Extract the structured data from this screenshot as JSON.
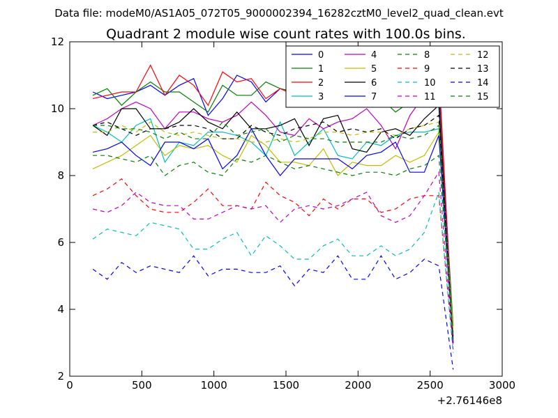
{
  "figure": {
    "suptitle": "Data file: modeM0/AS1A05_072T05_9000002394_16282cztM0_level2_quad_clean.evt"
  },
  "chart_data": {
    "type": "line",
    "title": "Quadrant 2 module wise count rates with 100.0s bins.",
    "xlabel": "",
    "ylabel": "",
    "xlim": [
      0,
      3000
    ],
    "ylim": [
      2,
      12
    ],
    "x_offset_label": "+2.76146e8",
    "xticks": [
      0,
      500,
      1000,
      1500,
      2000,
      2500,
      3000
    ],
    "xtick_labels": [
      "0",
      "500",
      "1000",
      "1500",
      "2000",
      "2500",
      "3000"
    ],
    "yticks": [
      2,
      4,
      6,
      8,
      10,
      12
    ],
    "ytick_labels": [
      "2",
      "4",
      "6",
      "8",
      "10",
      "12"
    ],
    "grid": false,
    "legend_placement": "top-right",
    "legend_columns": 4,
    "x": [
      160,
      260,
      360,
      460,
      560,
      660,
      760,
      860,
      960,
      1060,
      1160,
      1260,
      1360,
      1460,
      1560,
      1660,
      1760,
      1860,
      1960,
      2060,
      2160,
      2260,
      2360,
      2460,
      2560,
      2660
    ],
    "series": [
      {
        "name": "0",
        "color": "#0000ff",
        "dash": "solid",
        "values": [
          10.5,
          10.3,
          10.4,
          10.5,
          10.7,
          10.4,
          10.7,
          10.9,
          9.8,
          10.3,
          11.0,
          10.8,
          10.2,
          10.6,
          10.5,
          10.4,
          10.5,
          10.3,
          10.2,
          10.4,
          10.5,
          10.2,
          10.4,
          10.6,
          10.9,
          3.2
        ]
      },
      {
        "name": "1",
        "color": "#008000",
        "dash": "solid",
        "values": [
          10.4,
          10.6,
          10.1,
          10.5,
          10.8,
          10.5,
          10.5,
          10.2,
          9.9,
          10.7,
          10.4,
          10.4,
          10.8,
          10.6,
          10.5,
          10.3,
          10.3,
          10.2,
          10.4,
          10.2,
          10.3,
          9.9,
          10.2,
          10.1,
          10.5,
          3.5
        ]
      },
      {
        "name": "2",
        "color": "#ff0000",
        "dash": "solid",
        "values": [
          10.3,
          10.4,
          10.5,
          10.5,
          11.3,
          10.4,
          11.0,
          10.7,
          10.1,
          11.1,
          10.8,
          10.9,
          10.3,
          10.6,
          10.4,
          10.5,
          10.7,
          10.2,
          10.4,
          10.2,
          10.5,
          10.3,
          10.6,
          10.4,
          11.2,
          3.0
        ]
      },
      {
        "name": "3",
        "color": "#00bfbf",
        "dash": "solid",
        "values": [
          9.5,
          9.3,
          9.0,
          9.5,
          9.7,
          8.4,
          9.0,
          8.9,
          9.3,
          9.3,
          9.2,
          9.0,
          8.6,
          9.6,
          8.6,
          9.0,
          9.4,
          8.6,
          8.5,
          9.0,
          8.9,
          9.2,
          9.3,
          9.3,
          9.4,
          3.1
        ]
      },
      {
        "name": "4",
        "color": "#bf00bf",
        "dash": "solid",
        "values": [
          9.5,
          9.7,
          10.0,
          10.2,
          10.0,
          9.4,
          9.9,
          9.9,
          9.7,
          9.6,
          9.8,
          10.2,
          9.8,
          9.3,
          9.2,
          9.7,
          9.4,
          9.6,
          9.7,
          10.0,
          9.5,
          8.8,
          9.8,
          10.4,
          10.3,
          3.3
        ]
      },
      {
        "name": "5",
        "color": "#bfbf00",
        "dash": "solid",
        "values": [
          8.2,
          8.4,
          8.6,
          8.9,
          9.2,
          8.6,
          8.9,
          8.8,
          8.9,
          8.6,
          8.4,
          9.2,
          8.9,
          8.4,
          8.4,
          8.3,
          8.8,
          8.0,
          8.4,
          8.3,
          8.3,
          8.6,
          8.4,
          8.6,
          9.3,
          3.4
        ]
      },
      {
        "name": "6",
        "color": "#000000",
        "dash": "solid",
        "values": [
          9.5,
          9.2,
          10.0,
          10.0,
          9.4,
          9.4,
          9.6,
          10.0,
          9.6,
          9.4,
          9.9,
          9.4,
          9.4,
          9.5,
          9.7,
          8.9,
          9.7,
          9.8,
          8.8,
          8.7,
          9.3,
          9.4,
          9.2,
          9.7,
          10.1,
          3.0
        ]
      },
      {
        "name": "7",
        "color": "#0000ff",
        "dash": "solid",
        "values": [
          8.7,
          8.8,
          9.0,
          8.6,
          8.3,
          9.0,
          9.0,
          8.8,
          9.1,
          8.2,
          8.6,
          9.4,
          8.6,
          8.0,
          8.5,
          8.5,
          8.5,
          8.5,
          8.2,
          8.6,
          8.7,
          9.0,
          8.1,
          8.1,
          9.2,
          3.0
        ]
      },
      {
        "name": "8",
        "color": "#008000",
        "dash": "dashed",
        "values": [
          8.6,
          8.6,
          8.5,
          8.4,
          8.6,
          8.0,
          8.3,
          8.4,
          8.1,
          8.0,
          8.5,
          8.4,
          8.6,
          8.4,
          8.2,
          8.3,
          8.2,
          8.1,
          8.0,
          8.1,
          8.1,
          8.0,
          8.2,
          8.3,
          8.6,
          3.2
        ]
      },
      {
        "name": "9",
        "color": "#ff0000",
        "dash": "dashed",
        "values": [
          7.4,
          7.6,
          7.9,
          7.4,
          7.0,
          6.9,
          6.9,
          7.2,
          7.6,
          7.1,
          7.1,
          7.0,
          7.8,
          7.4,
          7.2,
          6.8,
          7.3,
          7.0,
          7.3,
          7.3,
          6.9,
          7.0,
          7.3,
          7.4,
          7.4,
          2.8
        ]
      },
      {
        "name": "10",
        "color": "#00bfbf",
        "dash": "dashed",
        "values": [
          6.1,
          6.4,
          6.3,
          6.2,
          6.6,
          6.5,
          6.4,
          5.8,
          5.8,
          6.1,
          6.3,
          5.6,
          6.2,
          5.9,
          5.5,
          5.5,
          5.9,
          6.1,
          5.6,
          5.6,
          5.9,
          5.6,
          5.8,
          6.3,
          7.5,
          2.7
        ]
      },
      {
        "name": "11",
        "color": "#bf00bf",
        "dash": "dashed",
        "values": [
          7.0,
          6.9,
          7.1,
          7.5,
          7.2,
          7.1,
          7.1,
          6.7,
          6.7,
          6.9,
          7.1,
          7.0,
          7.1,
          6.6,
          7.0,
          7.1,
          7.0,
          7.1,
          7.3,
          7.5,
          6.8,
          6.6,
          6.8,
          7.4,
          8.1,
          2.9
        ]
      },
      {
        "name": "12",
        "color": "#bfbf00",
        "dash": "dashed",
        "values": [
          9.3,
          9.3,
          9.5,
          9.3,
          9.6,
          9.3,
          9.2,
          9.3,
          9.2,
          9.1,
          9.1,
          9.0,
          9.0,
          9.1,
          9.0,
          9.1,
          9.3,
          9.3,
          9.2,
          9.3,
          9.3,
          9.2,
          9.4,
          9.5,
          9.6,
          3.3
        ]
      },
      {
        "name": "13",
        "color": "#000000",
        "dash": "dashed",
        "values": [
          9.5,
          9.6,
          9.4,
          9.2,
          9.4,
          9.4,
          9.5,
          9.5,
          9.4,
          9.1,
          9.1,
          9.5,
          9.3,
          9.2,
          9.4,
          9.5,
          9.6,
          9.3,
          9.4,
          9.3,
          9.4,
          9.1,
          9.4,
          9.5,
          9.8,
          3.0
        ]
      },
      {
        "name": "14",
        "color": "#0000ff",
        "dash": "dashed",
        "values": [
          5.2,
          4.9,
          5.4,
          5.1,
          5.3,
          5.2,
          5.1,
          5.6,
          5.0,
          5.2,
          5.2,
          5.1,
          5.1,
          5.3,
          4.7,
          5.2,
          5.1,
          5.6,
          4.9,
          4.9,
          5.6,
          4.9,
          5.1,
          5.5,
          5.3,
          2.2
        ]
      },
      {
        "name": "15",
        "color": "#008000",
        "dash": "dashed",
        "values": [
          9.5,
          9.5,
          9.4,
          9.4,
          9.3,
          9.1,
          9.3,
          9.1,
          9.1,
          9.6,
          9.2,
          9.3,
          9.4,
          9.0,
          9.2,
          9.1,
          9.1,
          9.0,
          9.0,
          9.0,
          9.0,
          9.2,
          9.1,
          9.2,
          9.5,
          3.1
        ]
      }
    ]
  }
}
